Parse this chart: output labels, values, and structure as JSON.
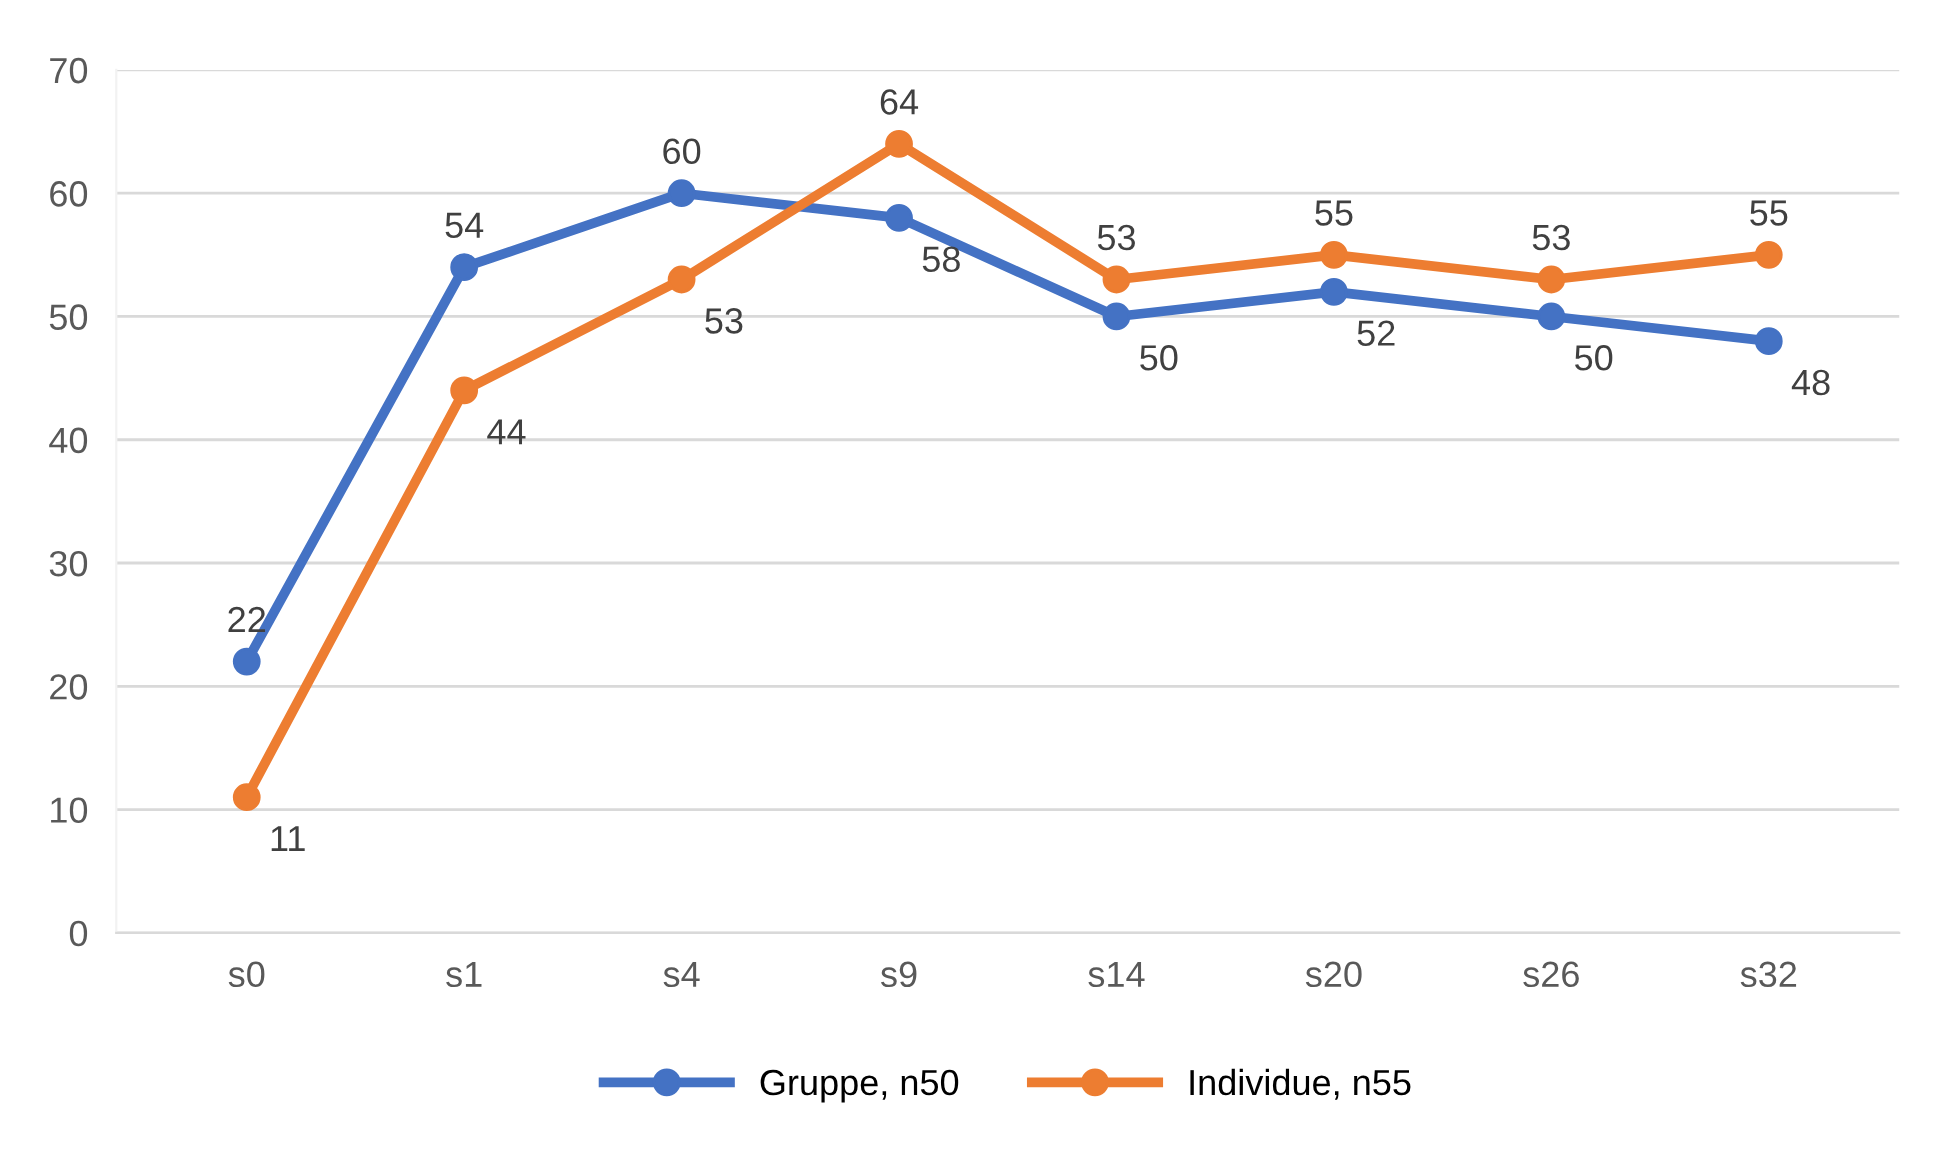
{
  "chart_data": {
    "type": "line",
    "categories": [
      "s0",
      "s1",
      "s4",
      "s9",
      "s14",
      "s20",
      "s26",
      "s32"
    ],
    "series": [
      {
        "name": "Gruppe, n50",
        "color": "#4472c4",
        "values": [
          22,
          54,
          60,
          58,
          50,
          52,
          50,
          48
        ]
      },
      {
        "name": "Individue, n55",
        "color": "#ed7d31",
        "values": [
          11,
          44,
          53,
          64,
          53,
          55,
          53,
          55
        ]
      }
    ],
    "ylim": [
      0,
      70
    ],
    "yticks": [
      0,
      10,
      20,
      30,
      40,
      50,
      60,
      70
    ],
    "grid": "y",
    "legend": "bottom",
    "marker": "circle",
    "line_style": "solid",
    "data_labels": true
  }
}
